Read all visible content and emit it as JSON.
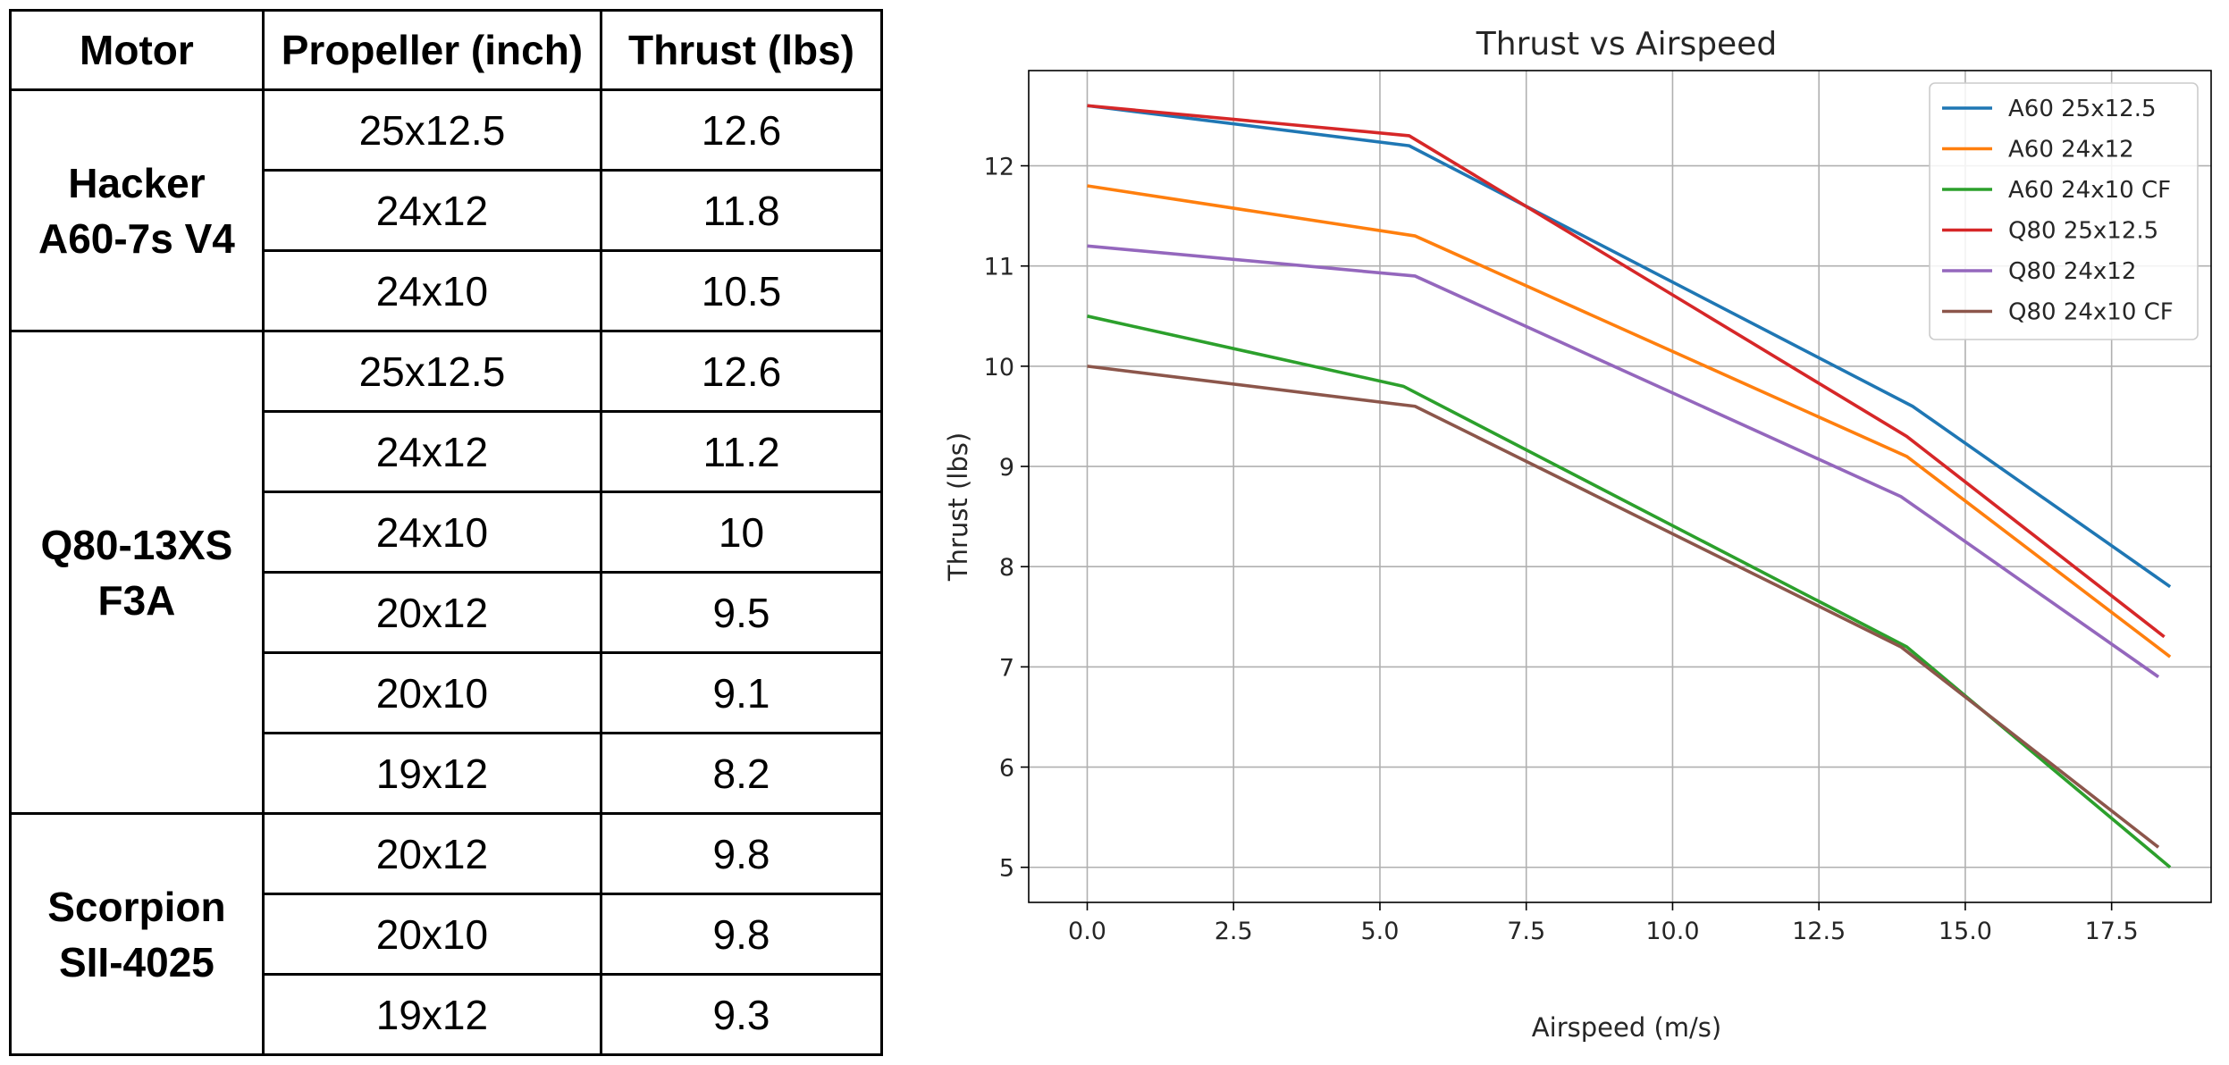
{
  "table": {
    "headers": [
      "Motor",
      "Propeller (inch)",
      "Thrust (lbs)"
    ],
    "groups": [
      {
        "motor": [
          "Hacker",
          "A60-7s V4"
        ],
        "rows": [
          [
            "25x12.5",
            "12.6"
          ],
          [
            "24x12",
            "11.8"
          ],
          [
            "24x10",
            "10.5"
          ]
        ]
      },
      {
        "motor": [
          "Q80-13XS",
          "F3A"
        ],
        "rows": [
          [
            "25x12.5",
            "12.6"
          ],
          [
            "24x12",
            "11.2"
          ],
          [
            "24x10",
            "10"
          ],
          [
            "20x12",
            "9.5"
          ],
          [
            "20x10",
            "9.1"
          ],
          [
            "19x12",
            "8.2"
          ]
        ]
      },
      {
        "motor": [
          "Scorpion",
          "SII-4025"
        ],
        "rows": [
          [
            "20x12",
            "9.8"
          ],
          [
            "20x10",
            "9.8"
          ],
          [
            "19x12",
            "9.3"
          ]
        ]
      }
    ]
  },
  "chart_data": {
    "type": "line",
    "title": "Thrust vs Airspeed",
    "xlabel": "Airspeed (m/s)",
    "ylabel": "Thrust (lbs)",
    "xlim": [
      -1.0,
      19.2
    ],
    "ylim": [
      4.65,
      12.95
    ],
    "xticks": [
      "0.0",
      "2.5",
      "5.0",
      "7.5",
      "10.0",
      "12.5",
      "15.0",
      "17.5"
    ],
    "yticks": [
      "5",
      "6",
      "7",
      "8",
      "9",
      "10",
      "11",
      "12"
    ],
    "grid": true,
    "legend_position": "upper right",
    "series": [
      {
        "name": "A60 25x12.5",
        "color": "#1f77b4",
        "points": [
          [
            0,
            12.6
          ],
          [
            5.5,
            12.2
          ],
          [
            14.1,
            9.6
          ],
          [
            18.5,
            7.8
          ]
        ]
      },
      {
        "name": "A60 24x12",
        "color": "#ff7f0e",
        "points": [
          [
            0,
            11.8
          ],
          [
            5.6,
            11.3
          ],
          [
            14,
            9.1
          ],
          [
            18.5,
            7.1
          ]
        ]
      },
      {
        "name": "A60 24x10 CF",
        "color": "#2ca02c",
        "points": [
          [
            0,
            10.5
          ],
          [
            5.4,
            9.8
          ],
          [
            14,
            7.2
          ],
          [
            18.5,
            5.0
          ]
        ]
      },
      {
        "name": "Q80 25x12.5",
        "color": "#d62728",
        "points": [
          [
            0,
            12.6
          ],
          [
            5.5,
            12.3
          ],
          [
            14,
            9.3
          ],
          [
            18.4,
            7.3
          ]
        ]
      },
      {
        "name": "Q80 24x12",
        "color": "#9467bd",
        "points": [
          [
            0,
            11.2
          ],
          [
            5.6,
            10.9
          ],
          [
            13.9,
            8.7
          ],
          [
            18.3,
            6.9
          ]
        ]
      },
      {
        "name": "Q80 24x10 CF",
        "color": "#8c564b",
        "points": [
          [
            0,
            10.0
          ],
          [
            5.6,
            9.6
          ],
          [
            13.9,
            7.2
          ],
          [
            18.3,
            5.2
          ]
        ]
      }
    ]
  }
}
